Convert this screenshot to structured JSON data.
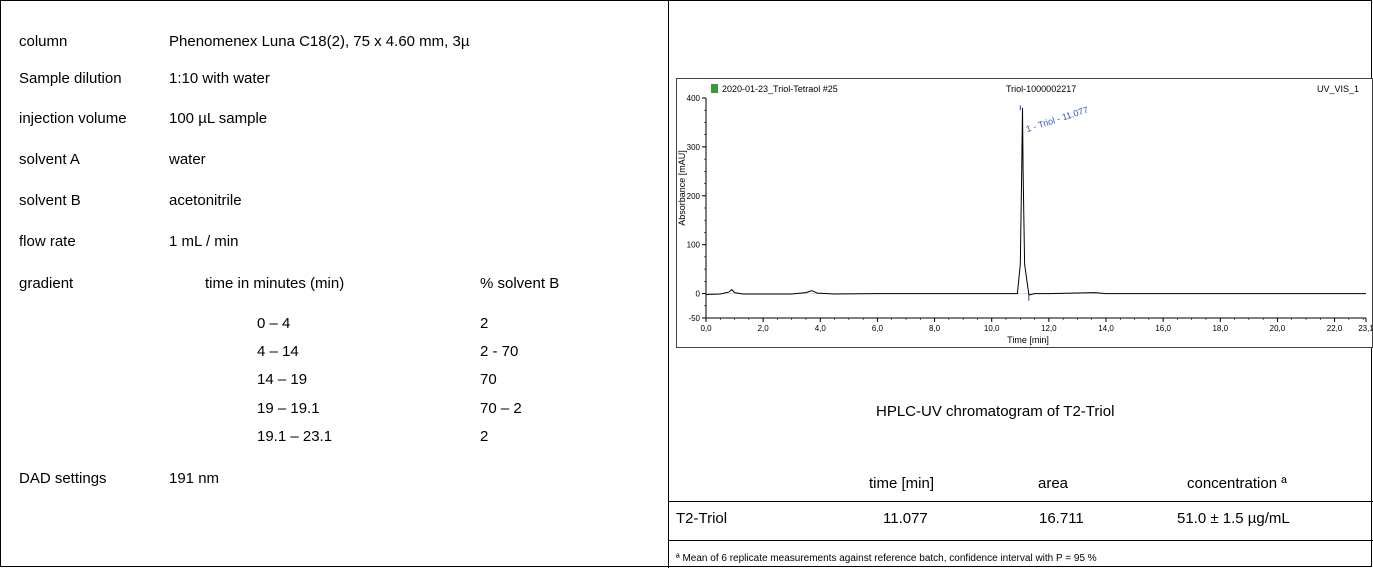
{
  "params": {
    "column_label": "column",
    "column_value": "Phenomenex Luna C18(2), 75 x 4.60 mm, 3µ",
    "dilution_label": "Sample dilution",
    "dilution_value": "1:10 with water",
    "injection_label": "injection volume",
    "injection_value": "100 µL sample",
    "solventA_label": "solvent A",
    "solventA_value": "water",
    "solventB_label": "solvent B",
    "solventB_value": "acetonitrile",
    "flow_label": "flow rate",
    "flow_value": "1 mL / min",
    "gradient_label": "gradient",
    "gradient_time_header": "time in minutes (min)",
    "gradient_pct_header": "% solvent B",
    "gradient_rows": [
      {
        "time": "0 – 4",
        "pct": "2"
      },
      {
        "time": "4  – 14",
        "pct": "2 - 70"
      },
      {
        "time": "14  – 19",
        "pct": "70"
      },
      {
        "time": "19  – 19.1",
        "pct": "70 – 2"
      },
      {
        "time": "19.1 – 23.1",
        "pct": "2"
      }
    ],
    "dad_label": "DAD settings",
    "dad_value": "191 nm"
  },
  "chromatogram": {
    "caption": "HPLC-UV chromatogram of T2-Triol",
    "header_left": "2020-01-23_Triol-Tetraol #25",
    "header_mid": "Triol-1000002217",
    "header_right": "UV_VIS_1",
    "peak_label": "1 - Triol - 11.077"
  },
  "results": {
    "col_time": "time [min]",
    "col_area": "area",
    "col_conc": "concentration ª",
    "row_name": "T2-Triol",
    "row_time": "11.077",
    "row_area": "16.711",
    "row_conc": "51.0 ± 1.5 µg/mL",
    "footnote": "ª Mean of 6 replicate measurements against reference batch, confidence interval with P = 95 %"
  },
  "chart_data": {
    "type": "line",
    "xlabel": "Time [min]",
    "ylabel": "Absorbance [mAU]",
    "xlim": [
      0,
      23.1
    ],
    "ylim": [
      -50,
      400
    ],
    "x_ticks": [
      "0,0",
      "2,0",
      "4,0",
      "6,0",
      "8,0",
      "10,0",
      "12,0",
      "14,0",
      "16,0",
      "18,0",
      "20,0",
      "22,0",
      "23,1"
    ],
    "x_tick_values": [
      0,
      2,
      4,
      6,
      8,
      10,
      12,
      14,
      16,
      18,
      20,
      22,
      23.1
    ],
    "y_ticks": [
      "-50",
      "0",
      "100",
      "200",
      "300",
      "400"
    ],
    "y_tick_values": [
      -50,
      0,
      100,
      200,
      300,
      400
    ],
    "series": [
      {
        "x": [
          0,
          0.5,
          0.8,
          0.9,
          1.0,
          1.3,
          2.0,
          3.0,
          3.5,
          3.7,
          3.9,
          4.5,
          6,
          8,
          10,
          10.9,
          11.0,
          11.05,
          11.077,
          11.1,
          11.15,
          11.3,
          11.5,
          12,
          13.6,
          14,
          16,
          18,
          20,
          22,
          23.1
        ],
        "y": [
          -2,
          -1,
          3,
          8,
          2,
          -1,
          -1,
          -1,
          2,
          6,
          1,
          -1,
          0,
          0,
          0,
          0,
          60,
          250,
          380,
          250,
          60,
          -3,
          0,
          0,
          2,
          0,
          0,
          0,
          0,
          0,
          0
        ]
      }
    ]
  }
}
